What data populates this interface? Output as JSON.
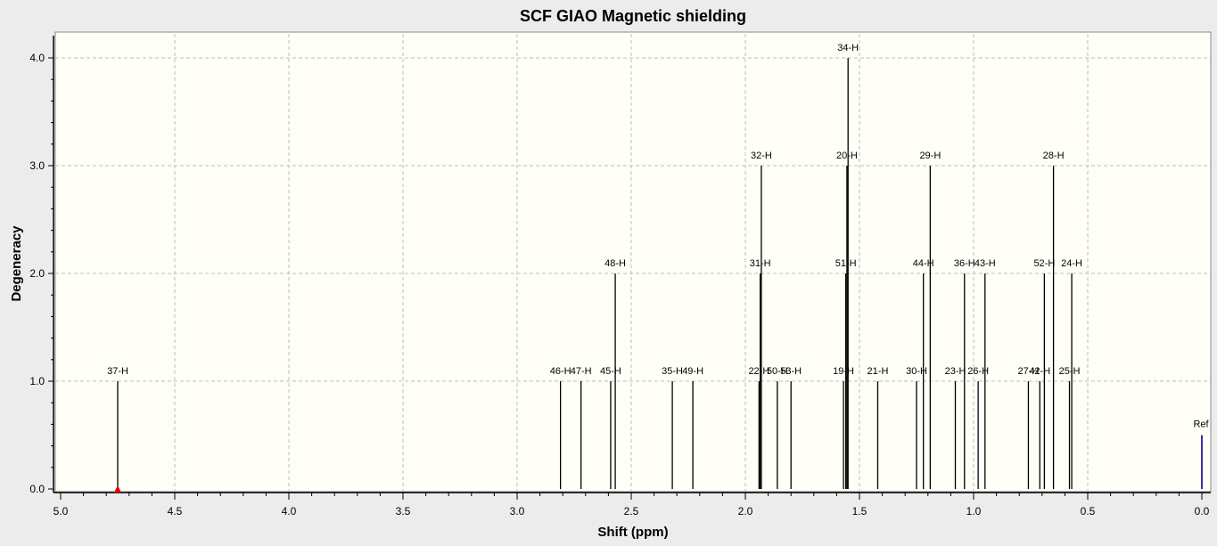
{
  "chart_data": {
    "type": "bar",
    "title": "SCF GIAO Magnetic shielding",
    "xlabel": "Shift (ppm)",
    "ylabel": "Degeneracy",
    "xlim": [
      5.0,
      0.0
    ],
    "ylim": [
      0,
      4.2
    ],
    "x_reversed": true,
    "xticks": [
      "5.0",
      "4.5",
      "4.0",
      "3.5",
      "3.0",
      "2.5",
      "2.0",
      "1.5",
      "1.0",
      "0.5",
      "0.0"
    ],
    "yticks": [
      "0.0",
      "1.0",
      "2.0",
      "3.0",
      "4.0"
    ],
    "grid": true,
    "colors": {
      "peak": "#000000",
      "reference": "#00008b",
      "marker": "#dd0000",
      "plot_background": "#fffff8"
    },
    "peaks": [
      {
        "label": "37-H",
        "x": 4.75,
        "y": 1
      },
      {
        "label": "46-H",
        "x": 2.81,
        "y": 1
      },
      {
        "label": "47-H",
        "x": 2.72,
        "y": 1
      },
      {
        "label": "45-H",
        "x": 2.59,
        "y": 1
      },
      {
        "label": "48-H",
        "x": 2.57,
        "y": 2
      },
      {
        "label": "35-H",
        "x": 2.32,
        "y": 1
      },
      {
        "label": "49-H",
        "x": 2.23,
        "y": 1
      },
      {
        "label": "22-H",
        "x": 1.94,
        "y": 1
      },
      {
        "label": "31-H",
        "x": 1.935,
        "y": 2
      },
      {
        "label": "32-H",
        "x": 1.93,
        "y": 3
      },
      {
        "label": "50-H",
        "x": 1.86,
        "y": 1
      },
      {
        "label": "53-H",
        "x": 1.8,
        "y": 1
      },
      {
        "label": "19-H",
        "x": 1.57,
        "y": 1
      },
      {
        "label": "51-H",
        "x": 1.56,
        "y": 2
      },
      {
        "label": "20-H",
        "x": 1.555,
        "y": 3
      },
      {
        "label": "34-H",
        "x": 1.55,
        "y": 4
      },
      {
        "label": "21-H",
        "x": 1.42,
        "y": 1
      },
      {
        "label": "30-H",
        "x": 1.25,
        "y": 1
      },
      {
        "label": "44-H",
        "x": 1.22,
        "y": 2
      },
      {
        "label": "29-H",
        "x": 1.19,
        "y": 3
      },
      {
        "label": "23-H",
        "x": 1.08,
        "y": 1
      },
      {
        "label": "36-H",
        "x": 1.04,
        "y": 2
      },
      {
        "label": "26-H",
        "x": 0.98,
        "y": 1
      },
      {
        "label": "43-H",
        "x": 0.95,
        "y": 2
      },
      {
        "label": "27-H",
        "x": 0.76,
        "y": 1
      },
      {
        "label": "42-H",
        "x": 0.71,
        "y": 1
      },
      {
        "label": "52-H",
        "x": 0.69,
        "y": 2
      },
      {
        "label": "28-H",
        "x": 0.65,
        "y": 3
      },
      {
        "label": "25-H",
        "x": 0.58,
        "y": 1
      },
      {
        "label": "24-H",
        "x": 0.57,
        "y": 2
      }
    ],
    "reference": {
      "label": "Ref",
      "x": 0.0,
      "y": 0.5
    },
    "marker": {
      "x": 4.75,
      "y": 0
    }
  }
}
